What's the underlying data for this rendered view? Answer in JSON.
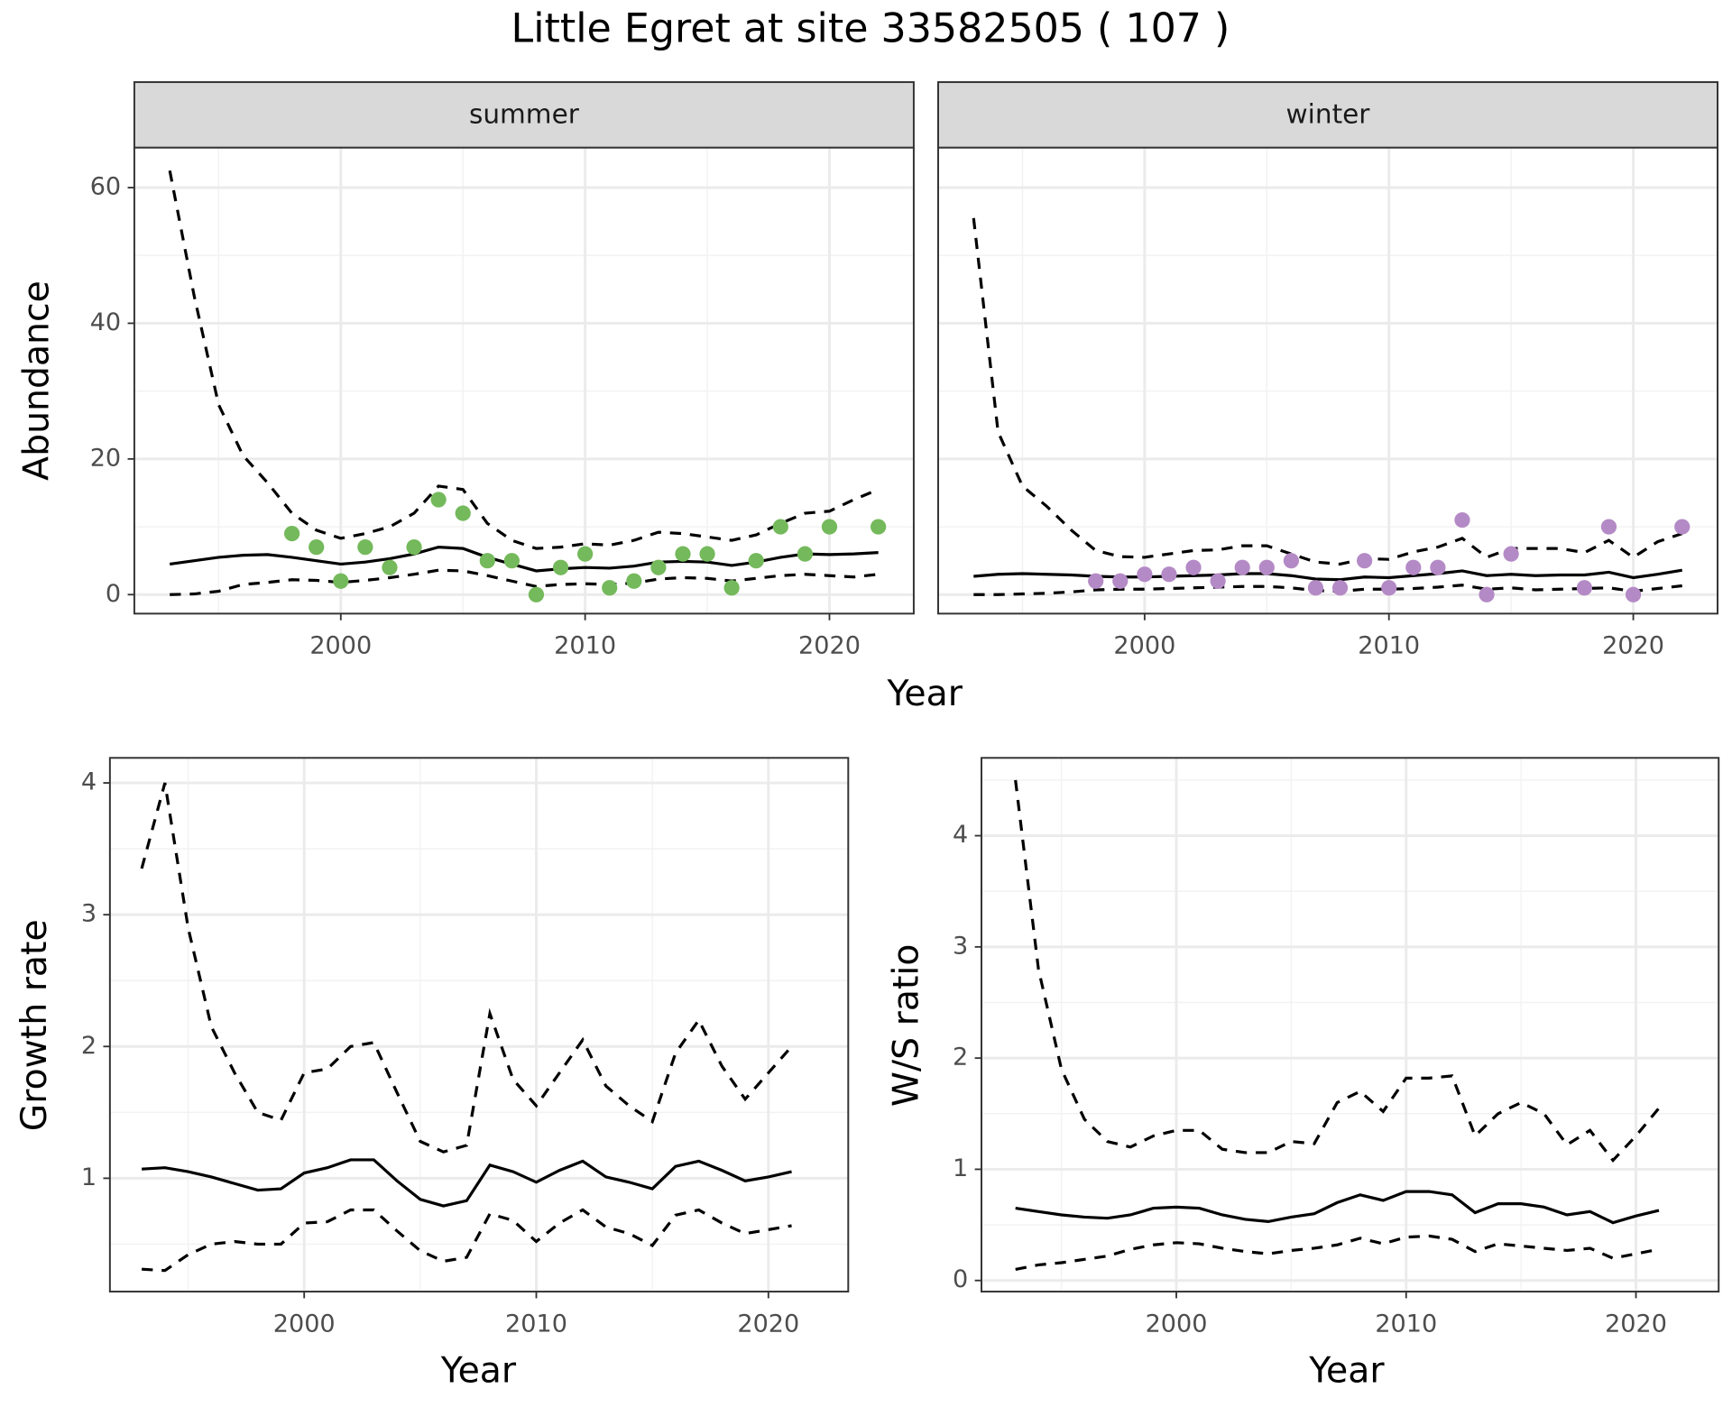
{
  "title": "Little Egret at site 33582505 ( 107 )",
  "chart_data": [
    {
      "type": "line",
      "x_label": "Year",
      "y_label": "Abundance",
      "xlim": [
        1991.55,
        2023.45
      ],
      "xticks": [
        2000,
        2010,
        2020
      ],
      "ylim": [
        -2.8,
        65.9
      ],
      "yticks": [
        0,
        20,
        40,
        60
      ],
      "grid": true,
      "panels": [
        {
          "title": "summer",
          "x": [
            1993,
            1994,
            1995,
            1996,
            1997,
            1998,
            1999,
            2000,
            2001,
            2002,
            2003,
            2004,
            2005,
            2006,
            2007,
            2008,
            2009,
            2010,
            2011,
            2012,
            2013,
            2014,
            2015,
            2016,
            2017,
            2018,
            2019,
            2020,
            2021,
            2022
          ],
          "series": [
            {
              "style": "solid",
              "color": "#000000",
              "values": [
                4.5,
                5,
                5.5,
                5.8,
                5.9,
                5.5,
                5,
                4.5,
                4.8,
                5.3,
                6,
                7,
                6.8,
                5.5,
                4.5,
                3.5,
                3.8,
                4,
                3.9,
                4.2,
                4.8,
                4.9,
                4.8,
                4.3,
                4.8,
                5.5,
                6,
                5.9,
                6,
                6.2
              ]
            },
            {
              "style": "dashed",
              "color": "#000000",
              "values": [
                62.5,
                44,
                28,
                20.5,
                16.5,
                12,
                9.5,
                8.3,
                9,
                10,
                12,
                16,
                15.5,
                10.5,
                8,
                6.8,
                7,
                7.5,
                7.3,
                8,
                9.2,
                9,
                8.5,
                8,
                8.8,
                10.5,
                12,
                12.3,
                14,
                15.5
              ]
            },
            {
              "style": "dashed",
              "color": "#000000",
              "values": [
                0,
                0.1,
                0.5,
                1.5,
                1.8,
                2.2,
                2.1,
                1.8,
                2.1,
                2.5,
                3,
                3.6,
                3.5,
                2.8,
                2,
                1.2,
                1.5,
                1.6,
                1.5,
                1.7,
                2.3,
                2.5,
                2.4,
                2,
                2.4,
                2.8,
                3,
                2.8,
                2.6,
                3
              ]
            },
            {
              "style": "points",
              "color": "#74b95b",
              "x": [
                1998,
                1999,
                2000,
                2001,
                2002,
                2003,
                2004,
                2005,
                2006,
                2007,
                2008,
                2009,
                2010,
                2011,
                2012,
                2013,
                2014,
                2015,
                2016,
                2017,
                2018,
                2019,
                2020,
                2022
              ],
              "values": [
                9,
                7,
                2,
                7,
                4,
                7,
                14,
                12,
                5,
                5,
                0,
                4,
                6,
                1,
                2,
                4,
                6,
                6,
                1,
                5,
                10,
                6,
                10,
                10
              ]
            }
          ]
        },
        {
          "title": "winter",
          "x": [
            1993,
            1994,
            1995,
            1996,
            1997,
            1998,
            1999,
            2000,
            2001,
            2002,
            2003,
            2004,
            2005,
            2006,
            2007,
            2008,
            2009,
            2010,
            2011,
            2012,
            2013,
            2014,
            2015,
            2016,
            2017,
            2018,
            2019,
            2020,
            2021,
            2022
          ],
          "series": [
            {
              "style": "solid",
              "color": "#000000",
              "values": [
                2.7,
                3,
                3.1,
                3,
                2.9,
                2.7,
                2.6,
                2.6,
                2.7,
                2.8,
                2.9,
                3.1,
                3.1,
                2.8,
                2.3,
                2.2,
                2.6,
                2.5,
                2.8,
                3.1,
                3.5,
                2.8,
                3,
                2.8,
                2.9,
                2.9,
                3.3,
                2.5,
                3,
                3.6
              ]
            },
            {
              "style": "dashed",
              "color": "#000000",
              "values": [
                55.5,
                24,
                16,
                13,
                9.5,
                6.5,
                5.6,
                5.5,
                6,
                6.5,
                6.6,
                7.2,
                7.2,
                6,
                4.8,
                4.5,
                5.3,
                5.2,
                6.3,
                7,
                8.3,
                5.5,
                6.8,
                6.8,
                6.8,
                6.2,
                8,
                5.5,
                7.8,
                9
              ]
            },
            {
              "style": "dashed",
              "color": "#000000",
              "values": [
                0,
                0,
                0.1,
                0.2,
                0.4,
                0.7,
                0.8,
                0.8,
                0.9,
                1,
                1.1,
                1.2,
                1.2,
                1,
                0.6,
                0.5,
                0.8,
                0.8,
                0.9,
                1.1,
                1.4,
                0.8,
                1,
                0.7,
                0.8,
                0.9,
                1,
                0.5,
                0.9,
                1.3
              ]
            },
            {
              "style": "points",
              "color": "#b48ac6",
              "x": [
                1998,
                1999,
                2000,
                2001,
                2002,
                2003,
                2004,
                2005,
                2006,
                2007,
                2008,
                2009,
                2010,
                2011,
                2012,
                2013,
                2014,
                2015,
                2018,
                2019,
                2020,
                2022
              ],
              "values": [
                2,
                2,
                3,
                3,
                4,
                2,
                4,
                4,
                5,
                1,
                1,
                5,
                1,
                4,
                4,
                11,
                0,
                6,
                1,
                10,
                0,
                10
              ]
            }
          ]
        }
      ]
    },
    {
      "type": "line",
      "x_label": "Year",
      "y_label": "Growth rate",
      "xlim": [
        1991.63,
        2023.44
      ],
      "xticks": [
        2000,
        2010,
        2020
      ],
      "ylim": [
        0.14,
        4.19
      ],
      "yticks": [
        1,
        2,
        3,
        4
      ],
      "grid": true,
      "x": [
        1993,
        1994,
        1995,
        1996,
        1997,
        1998,
        1999,
        2000,
        2001,
        2002,
        2003,
        2004,
        2005,
        2006,
        2007,
        2008,
        2009,
        2010,
        2011,
        2012,
        2013,
        2014,
        2015,
        2016,
        2017,
        2018,
        2019,
        2020,
        2021
      ],
      "series": [
        {
          "style": "solid",
          "color": "#000000",
          "values": [
            1.07,
            1.08,
            1.05,
            1.01,
            0.96,
            0.91,
            0.92,
            1.04,
            1.08,
            1.14,
            1.14,
            0.98,
            0.84,
            0.79,
            0.83,
            1.1,
            1.05,
            0.97,
            1.06,
            1.13,
            1.01,
            0.97,
            0.92,
            1.09,
            1.13,
            1.06,
            0.98,
            1.01,
            1.05
          ]
        },
        {
          "style": "dashed",
          "color": "#000000",
          "values": [
            3.35,
            4,
            2.9,
            2.15,
            1.8,
            1.5,
            1.44,
            1.8,
            1.83,
            2,
            2.03,
            1.65,
            1.28,
            1.2,
            1.25,
            2.25,
            1.75,
            1.55,
            1.8,
            2.05,
            1.7,
            1.55,
            1.43,
            1.95,
            2.2,
            1.85,
            1.6,
            1.8,
            2
          ]
        },
        {
          "style": "dashed",
          "color": "#000000",
          "values": [
            0.31,
            0.3,
            0.42,
            0.5,
            0.52,
            0.5,
            0.5,
            0.66,
            0.67,
            0.76,
            0.76,
            0.6,
            0.45,
            0.37,
            0.4,
            0.73,
            0.68,
            0.52,
            0.66,
            0.76,
            0.63,
            0.58,
            0.49,
            0.72,
            0.76,
            0.66,
            0.58,
            0.61,
            0.64
          ]
        }
      ]
    },
    {
      "type": "line",
      "x_label": "Year",
      "y_label": "W/S ratio",
      "xlim": [
        1991.52,
        2023.6
      ],
      "xticks": [
        2000,
        2010,
        2020
      ],
      "ylim": [
        -0.1,
        4.7
      ],
      "yticks": [
        0,
        1,
        2,
        3,
        4
      ],
      "grid": true,
      "x": [
        1993,
        1994,
        1995,
        1996,
        1997,
        1998,
        1999,
        2000,
        2001,
        2002,
        2003,
        2004,
        2005,
        2006,
        2007,
        2008,
        2009,
        2010,
        2011,
        2012,
        2013,
        2014,
        2015,
        2016,
        2017,
        2018,
        2019,
        2020,
        2021
      ],
      "series": [
        {
          "style": "solid",
          "color": "#000000",
          "values": [
            0.65,
            0.62,
            0.59,
            0.57,
            0.56,
            0.59,
            0.65,
            0.66,
            0.65,
            0.59,
            0.55,
            0.53,
            0.57,
            0.6,
            0.7,
            0.77,
            0.72,
            0.8,
            0.8,
            0.77,
            0.61,
            0.69,
            0.69,
            0.66,
            0.59,
            0.62,
            0.52,
            0.58,
            0.63
          ]
        },
        {
          "style": "dashed",
          "color": "#000000",
          "values": [
            4.5,
            2.8,
            1.9,
            1.45,
            1.25,
            1.2,
            1.3,
            1.35,
            1.35,
            1.18,
            1.15,
            1.15,
            1.25,
            1.23,
            1.6,
            1.7,
            1.52,
            1.82,
            1.82,
            1.84,
            1.3,
            1.5,
            1.6,
            1.5,
            1.22,
            1.35,
            1.08,
            1.3,
            1.55
          ]
        },
        {
          "style": "dashed",
          "color": "#000000",
          "values": [
            0.1,
            0.14,
            0.16,
            0.19,
            0.22,
            0.28,
            0.32,
            0.34,
            0.33,
            0.29,
            0.26,
            0.24,
            0.27,
            0.29,
            0.32,
            0.38,
            0.33,
            0.39,
            0.4,
            0.37,
            0.26,
            0.33,
            0.31,
            0.29,
            0.27,
            0.29,
            0.2,
            0.24,
            0.28
          ]
        }
      ]
    }
  ]
}
